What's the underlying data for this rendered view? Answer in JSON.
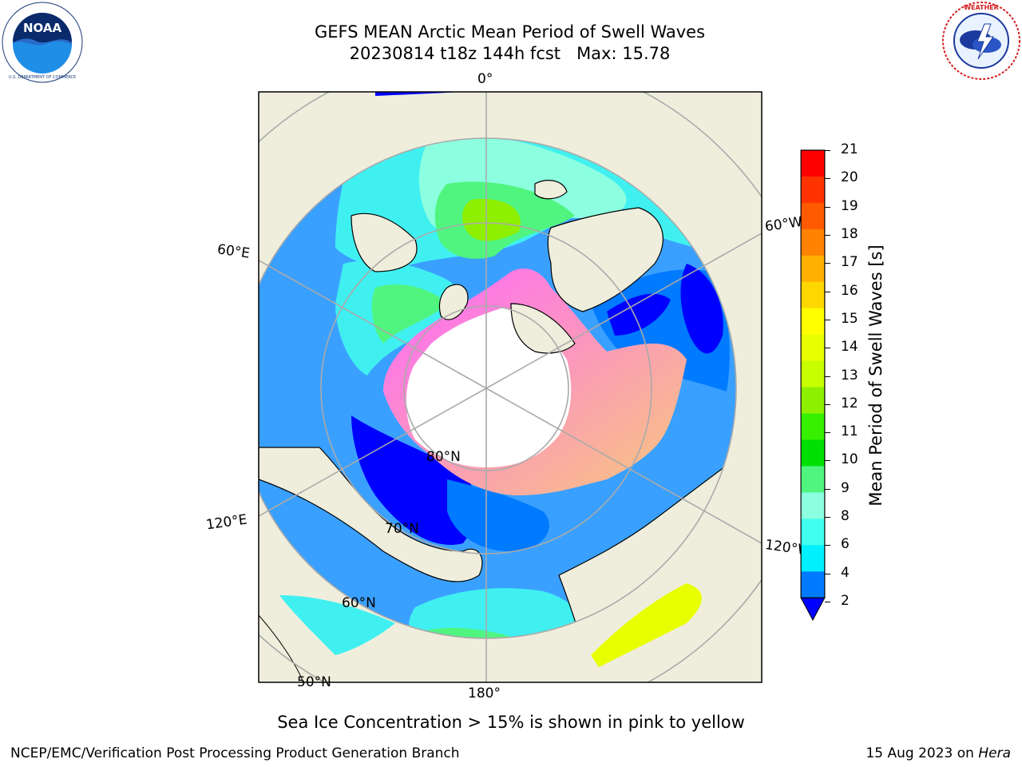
{
  "header": {
    "title_line1": "GEFS MEAN Arctic Mean Period of Swell Waves",
    "title_line2": "20230814 t18z 144h fcst   Max: 15.78"
  },
  "logos": {
    "left": "NOAA",
    "left_ring_text": "NATIONAL OCEANIC AND ATMOSPHERIC ADMINISTRATION · U.S. DEPARTMENT OF COMMERCE",
    "right_ring_text": "NATIONAL WEATHER SERVICE"
  },
  "map": {
    "projection": "north polar stereographic",
    "longitude_labels": [
      "0°",
      "60°E",
      "60°W",
      "120°E",
      "120°W",
      "180°"
    ],
    "latitude_labels": [
      "80°N",
      "70°N",
      "60°N",
      "50°N"
    ],
    "colors": {
      "land": "#efeedd",
      "ice_low": "#ff66ff",
      "ice_high": "#f7c97a",
      "grid": "#aaaaaa"
    }
  },
  "colorbar": {
    "label": "Mean Period of Swell Waves [s]",
    "ticks": [
      "21",
      "20",
      "19",
      "18",
      "17",
      "16",
      "15",
      "14",
      "13",
      "12",
      "11",
      "10",
      "9",
      "8",
      "6",
      "4",
      "2"
    ],
    "colors": [
      "#ff0000",
      "#ff3300",
      "#ff5a00",
      "#ff8200",
      "#ffb000",
      "#ffd700",
      "#ffff00",
      "#e8ff00",
      "#c8ff00",
      "#8ef000",
      "#36f000",
      "#00e000",
      "#50f580",
      "#8cffe0",
      "#40fff0",
      "#00f0ff",
      "#007aff"
    ],
    "extend_color": "#0000ff"
  },
  "note": "Sea Ice Concentration > 15% is shown in pink to yellow",
  "footer": {
    "left": "NCEP/EMC/Verification Post Processing Product Generation Branch",
    "date": "15 Aug 2023 on ",
    "machine": "Hera"
  }
}
